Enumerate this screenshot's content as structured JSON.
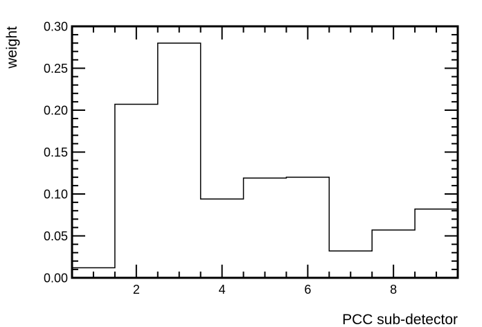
{
  "chart_data": {
    "type": "bar",
    "style": "step-histogram",
    "title": "",
    "xlabel": "PCC sub-detector",
    "ylabel": "weight",
    "xlim": [
      0.5,
      9.5
    ],
    "ylim": [
      0,
      0.3
    ],
    "bin_edges": [
      0.5,
      1.5,
      2.5,
      3.5,
      4.5,
      5.5,
      6.5,
      7.5,
      8.5,
      9.5
    ],
    "categories": [
      1,
      2,
      3,
      4,
      5,
      6,
      7,
      8,
      9
    ],
    "values": [
      0.012,
      0.207,
      0.28,
      0.094,
      0.119,
      0.12,
      0.032,
      0.057,
      0.082
    ],
    "x_ticks": [
      2,
      4,
      6,
      8
    ],
    "x_tick_labels": [
      "2",
      "4",
      "6",
      "8"
    ],
    "y_ticks": [
      0,
      0.05,
      0.1,
      0.15,
      0.2,
      0.25,
      0.3
    ],
    "y_tick_labels": [
      "0.00",
      "0.05",
      "0.10",
      "0.15",
      "0.20",
      "0.25",
      "0.30"
    ],
    "grid": false,
    "legend": "none",
    "line_color": "#000000",
    "background": "#ffffff"
  }
}
